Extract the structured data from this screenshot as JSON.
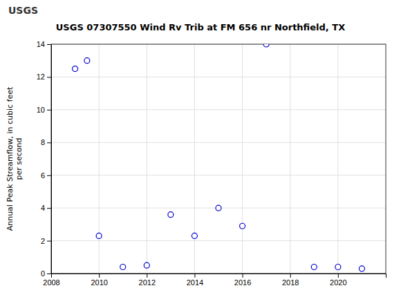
{
  "chart_data": {
    "type": "scatter",
    "title": "USGS 07307550 Wind Rv Trib at FM 656 nr Northfield, TX",
    "y_label": "Annual Peak Streamflow, in cubic feet\nper second",
    "annotations": [
      "USGS"
    ],
    "x": [
      2009,
      2009.5,
      2010,
      2011,
      2012,
      2013,
      2014,
      2015,
      2016,
      2017,
      2019,
      2020,
      2021
    ],
    "values": [
      12.5,
      13.0,
      2.3,
      0.4,
      0.5,
      3.6,
      2.3,
      4.0,
      2.9,
      14.0,
      0.4,
      0.4,
      0.3
    ],
    "color": "#0000CC",
    "marker": "open-circle",
    "xlim": [
      2008,
      2022
    ],
    "xticks": [
      2008,
      2010,
      2012,
      2014,
      2016,
      2018,
      2020
    ],
    "ylim": [
      0,
      14
    ],
    "yticks": [
      0,
      2,
      4,
      6,
      8,
      10,
      12,
      14
    ],
    "grid": true
  }
}
